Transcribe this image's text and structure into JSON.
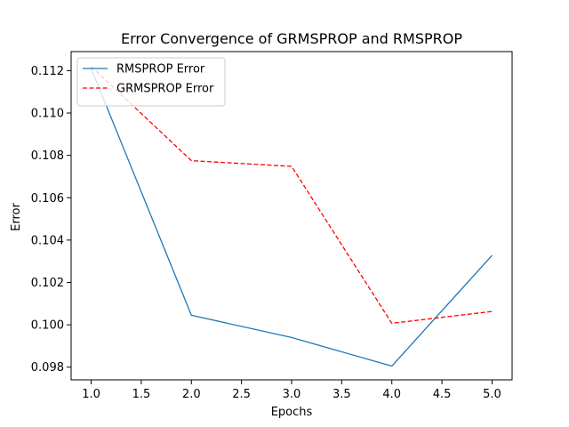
{
  "chart_data": {
    "type": "line",
    "title": "Error Convergence of GRMSPROP and RMSPROP",
    "xlabel": "Epochs",
    "ylabel": "Error",
    "x": [
      1,
      2,
      3,
      4,
      5
    ],
    "xlim": [
      0.8,
      5.2
    ],
    "ylim": [
      0.0974,
      0.1129
    ],
    "x_ticks": [
      1.0,
      1.5,
      2.0,
      2.5,
      3.0,
      3.5,
      4.0,
      4.5,
      5.0
    ],
    "x_tick_labels": [
      "1.0",
      "1.5",
      "2.0",
      "2.5",
      "3.0",
      "3.5",
      "4.0",
      "4.5",
      "5.0"
    ],
    "y_ticks": [
      0.098,
      0.1,
      0.102,
      0.104,
      0.106,
      0.108,
      0.11,
      0.112
    ],
    "y_tick_labels": [
      "0.098",
      "0.100",
      "0.102",
      "0.104",
      "0.106",
      "0.108",
      "0.110",
      "0.112"
    ],
    "grid": false,
    "legend_position": "top-left",
    "series": [
      {
        "name": "RMSPROP Error",
        "values": [
          0.1121,
          0.10045,
          0.0994,
          0.09805,
          0.10328
        ],
        "color": "#1f77b4",
        "style": "solid"
      },
      {
        "name": "GRMSPROP Error",
        "values": [
          0.1122,
          0.10775,
          0.10748,
          0.10007,
          0.10063
        ],
        "color": "#ff0000",
        "style": "dashed"
      }
    ]
  }
}
